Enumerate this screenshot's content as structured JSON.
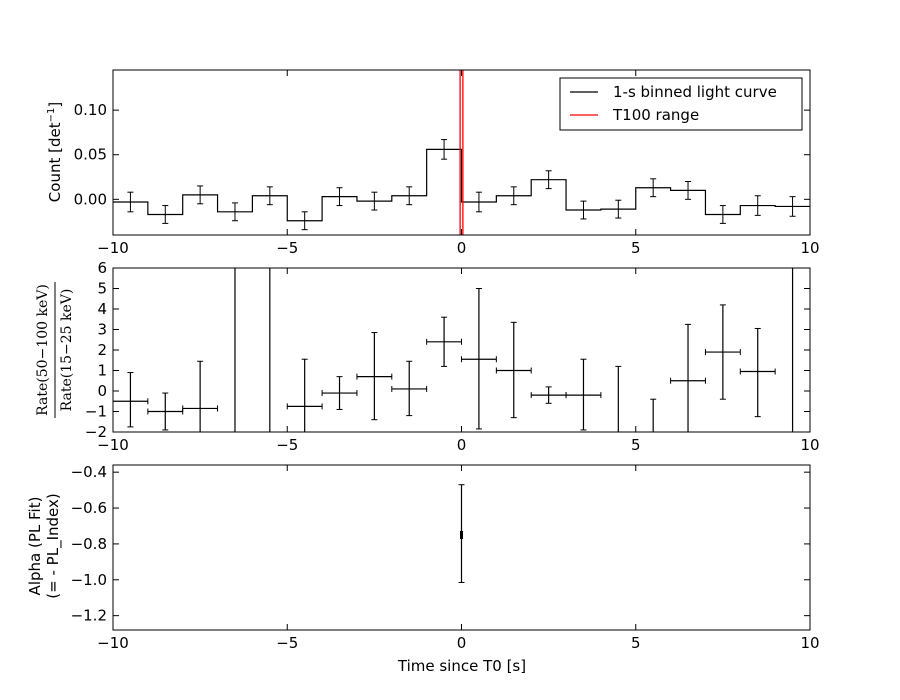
{
  "chart_data": [
    {
      "type": "line",
      "panel": "top",
      "ylabel": "Count [det$^{-1}$]",
      "ylabel_text": "Count [det",
      "ylabel_sup": "−1",
      "ylabel_end": "]",
      "xlim": [
        -10,
        10
      ],
      "ylim": [
        -0.04,
        0.145
      ],
      "xticks": [
        -10,
        -5,
        0,
        5,
        10
      ],
      "xtick_labels": [
        "−10",
        "−5",
        "0",
        "5",
        "10"
      ],
      "yticks": [
        0.0,
        0.05,
        0.1
      ],
      "ytick_labels": [
        "0.00",
        "0.05",
        "0.10"
      ],
      "grid": false,
      "legend_position": "top-right",
      "series": [
        {
          "name": "1-s binned light curve",
          "color": "#000000",
          "style": "steps-with-errorbars",
          "bin_edges": [
            -10,
            -9,
            -8,
            -7,
            -6,
            -5,
            -4,
            -3,
            -2,
            -1,
            0,
            1,
            2,
            3,
            4,
            5,
            6,
            7,
            8,
            9,
            10
          ],
          "x": [
            -9.5,
            -8.5,
            -7.5,
            -6.5,
            -5.5,
            -4.5,
            -3.5,
            -2.5,
            -1.5,
            -0.5,
            0.5,
            1.5,
            2.5,
            3.5,
            4.5,
            5.5,
            6.5,
            7.5,
            8.5,
            9.5
          ],
          "values": [
            -0.003,
            -0.017,
            0.005,
            -0.014,
            0.004,
            -0.024,
            0.003,
            -0.002,
            0.004,
            0.056,
            -0.003,
            0.004,
            0.022,
            -0.012,
            -0.011,
            0.013,
            0.01,
            -0.017,
            -0.007,
            -0.008
          ],
          "errors": [
            0.011,
            0.01,
            0.01,
            0.01,
            0.01,
            0.01,
            0.01,
            0.01,
            0.01,
            0.011,
            0.011,
            0.01,
            0.01,
            0.01,
            0.01,
            0.01,
            0.01,
            0.01,
            0.011,
            0.011
          ]
        },
        {
          "name": "T100 range",
          "color": "#ff0000",
          "style": "vertical-lines",
          "x": [
            -0.04,
            0.04
          ]
        }
      ]
    },
    {
      "type": "scatter",
      "panel": "middle",
      "ylabel_num": "Rate(50−100 keV)",
      "ylabel_den": "Rate(15−25 keV)",
      "xlim": [
        -10,
        10
      ],
      "ylim": [
        -2,
        6
      ],
      "xticks": [
        -10,
        -5,
        0,
        5,
        10
      ],
      "xtick_labels": [
        "−10",
        "−5",
        "0",
        "5",
        "10"
      ],
      "yticks": [
        -2,
        -1,
        0,
        1,
        2,
        3,
        4,
        5,
        6
      ],
      "ytick_labels": [
        "−2",
        "−1",
        "0",
        "1",
        "2",
        "3",
        "4",
        "5",
        "6"
      ],
      "grid": false,
      "series": [
        {
          "style": "errorbars",
          "color": "#000000",
          "x_half_width": 0.5,
          "x": [
            -9.5,
            -8.5,
            -7.5,
            -4.5,
            -3.5,
            -2.5,
            -1.5,
            -0.5,
            0.5,
            1.5,
            2.5,
            3.5
          ],
          "values": [
            -0.5,
            -1.0,
            -0.85,
            -0.75,
            -0.1,
            0.7,
            0.1,
            2.4,
            1.55,
            1.0,
            -0.2,
            -0.2
          ],
          "err_low": [
            1.25,
            0.9,
            1.3,
            1.3,
            0.8,
            2.1,
            1.3,
            1.2,
            3.4,
            2.3,
            0.4,
            1.7
          ],
          "err_high": [
            1.4,
            0.9,
            2.3,
            2.3,
            0.8,
            2.15,
            1.35,
            1.2,
            3.45,
            2.35,
            0.4,
            1.75
          ]
        },
        {
          "style": "errorbars",
          "color": "#000000",
          "x_half_width": 0.5,
          "x": [
            6.5,
            7.5,
            8.5
          ],
          "values": [
            0.5,
            1.9,
            0.95
          ],
          "err_low": [
            2.6,
            2.3,
            2.2
          ],
          "err_high": [
            2.75,
            2.3,
            2.1
          ]
        },
        {
          "style": "vertical-segments",
          "color": "#000000",
          "x": [
            -6.5,
            -5.5,
            4.5,
            5.5,
            9.5
          ],
          "y_low": [
            -2,
            -2,
            -2,
            -2,
            -2
          ],
          "y_high": [
            6,
            6,
            1.2,
            -0.4,
            6
          ]
        }
      ]
    },
    {
      "type": "scatter",
      "panel": "bottom",
      "ylabel_line1": "Alpha (PL Fit)",
      "ylabel_line2": "(= - PL_Index)",
      "xlabel": "Time since T0 [s]",
      "xlim": [
        -10,
        10
      ],
      "ylim": [
        -1.28,
        -0.36
      ],
      "xticks": [
        -10,
        -5,
        0,
        5,
        10
      ],
      "xtick_labels": [
        "−10",
        "−5",
        "0",
        "5",
        "10"
      ],
      "yticks": [
        -1.2,
        -1.0,
        -0.8,
        -0.6,
        -0.4
      ],
      "ytick_labels": [
        "−1.2",
        "−1.0",
        "−0.8",
        "−0.6",
        "−0.4"
      ],
      "grid": false,
      "series": [
        {
          "style": "errorbars",
          "color": "#000000",
          "x": [
            0.0
          ],
          "values": [
            -0.75
          ],
          "err_low": [
            0.265
          ],
          "err_high": [
            0.28
          ]
        }
      ]
    }
  ]
}
